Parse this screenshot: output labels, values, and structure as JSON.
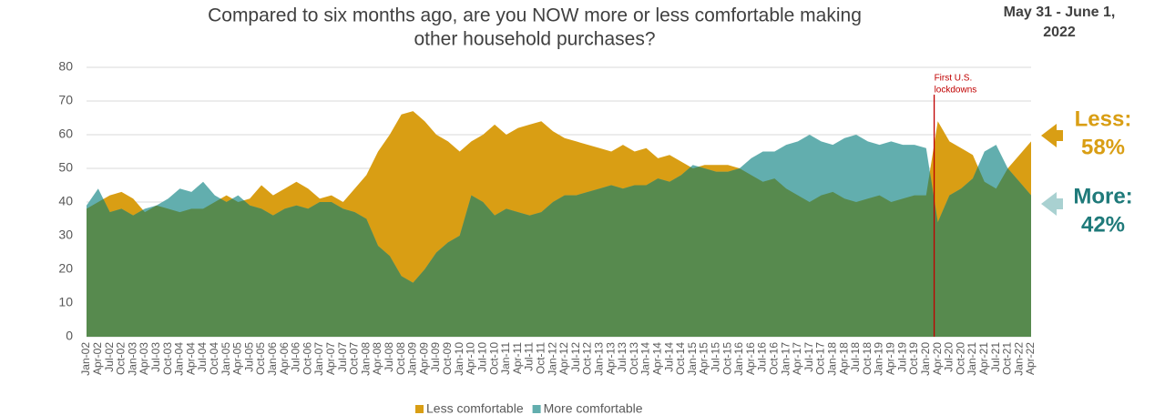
{
  "chart_data": {
    "type": "area",
    "title": [
      "Compared to six months ago, are you NOW more or less comfortable making",
      "other household purchases?"
    ],
    "date_note": [
      "May 31 - June 1,",
      "2022"
    ],
    "categories": [
      "Jan-02",
      "Apr-02",
      "Jul-02",
      "Oct-02",
      "Jan-03",
      "Apr-03",
      "Jul-03",
      "Oct-03",
      "Jan-04",
      "Apr-04",
      "Jul-04",
      "Oct-04",
      "Jan-05",
      "Apr-05",
      "Jul-05",
      "Oct-05",
      "Jan-06",
      "Apr-06",
      "Jul-06",
      "Oct-06",
      "Jan-07",
      "Apr-07",
      "Jul-07",
      "Oct-07",
      "Jan-08",
      "Apr-08",
      "Jul-08",
      "Oct-08",
      "Jan-09",
      "Apr-09",
      "Jul-09",
      "Oct-09",
      "Jan-10",
      "Apr-10",
      "Jul-10",
      "Oct-10",
      "Jan-11",
      "Apr-11",
      "Jul-11",
      "Oct-11",
      "Jan-12",
      "Apr-12",
      "Jul-12",
      "Oct-12",
      "Jan-13",
      "Apr-13",
      "Jul-13",
      "Oct-13",
      "Jan-14",
      "Apr-14",
      "Jul-14",
      "Oct-14",
      "Jan-15",
      "Apr-15",
      "Jul-15",
      "Oct-15",
      "Jan-16",
      "Apr-16",
      "Jul-16",
      "Oct-16",
      "Jan-17",
      "Apr-17",
      "Jul-17",
      "Oct-17",
      "Jan-18",
      "Apr-18",
      "Jul-18",
      "Oct-18",
      "Jan-19",
      "Apr-19",
      "Jul-19",
      "Oct-19",
      "Jan-20",
      "Apr-20",
      "Jul-20",
      "Oct-20",
      "Jan-21",
      "Apr-21",
      "Jul-21",
      "Oct-21",
      "Jan-22",
      "Apr-22"
    ],
    "series": [
      {
        "name": "Less comfortable",
        "color": "#d99e14",
        "values": [
          38,
          40,
          42,
          43,
          41,
          37,
          39,
          38,
          37,
          38,
          38,
          40,
          42,
          40,
          41,
          45,
          42,
          44,
          46,
          44,
          41,
          42,
          40,
          44,
          48,
          55,
          60,
          66,
          67,
          64,
          60,
          58,
          55,
          58,
          60,
          63,
          60,
          62,
          63,
          64,
          61,
          59,
          58,
          57,
          56,
          55,
          57,
          55,
          56,
          53,
          54,
          52,
          50,
          51,
          51,
          51,
          50,
          48,
          46,
          47,
          44,
          42,
          40,
          42,
          43,
          41,
          40,
          41,
          42,
          40,
          41,
          42,
          42,
          64,
          58,
          56,
          54,
          46,
          44,
          50,
          54,
          58
        ]
      },
      {
        "name": "More comfortable",
        "color": "#62aeae",
        "values": [
          39,
          44,
          37,
          38,
          36,
          38,
          39,
          41,
          44,
          43,
          46,
          42,
          40,
          42,
          39,
          38,
          36,
          38,
          39,
          38,
          40,
          40,
          38,
          37,
          35,
          27,
          24,
          18,
          16,
          20,
          25,
          28,
          30,
          42,
          40,
          36,
          38,
          37,
          36,
          37,
          40,
          42,
          42,
          43,
          44,
          45,
          44,
          45,
          45,
          47,
          46,
          48,
          51,
          50,
          49,
          49,
          50,
          53,
          55,
          55,
          57,
          58,
          60,
          58,
          57,
          59,
          60,
          58,
          57,
          58,
          57,
          57,
          56,
          34,
          42,
          44,
          47,
          55,
          57,
          50,
          46,
          42
        ]
      }
    ],
    "ylim": [
      0,
      80
    ],
    "yticks": [
      0,
      10,
      20,
      30,
      40,
      50,
      60,
      70,
      80
    ],
    "grid": true,
    "legend": "bottom",
    "annotation": {
      "text": [
        "First U.S.",
        "lockdowns"
      ],
      "at": "Apr-20",
      "color": "#c00000"
    },
    "callouts": [
      {
        "name": "Less:",
        "label": "58%",
        "color": "#d99e14"
      },
      {
        "name": "More:",
        "label": "42%",
        "color": "#1f7a7a"
      }
    ]
  }
}
